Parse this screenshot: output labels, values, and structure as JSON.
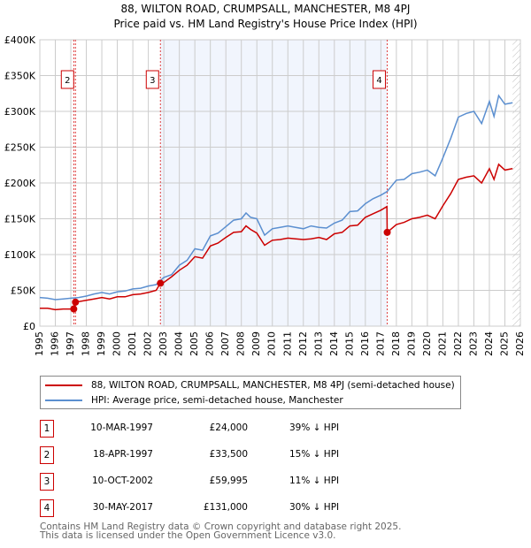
{
  "chart_data": {
    "type": "line",
    "title": "88, WILTON ROAD, CRUMPSALL, MANCHESTER, M8 4PJ",
    "subtitle": "Price paid vs. HM Land Registry's House Price Index (HPI)",
    "xlim": [
      1995,
      2026
    ],
    "ylim": [
      0,
      400000
    ],
    "y_ticks": [
      {
        "v": 0,
        "label": "£0"
      },
      {
        "v": 50000,
        "label": "£50K"
      },
      {
        "v": 100000,
        "label": "£100K"
      },
      {
        "v": 150000,
        "label": "£150K"
      },
      {
        "v": 200000,
        "label": "£200K"
      },
      {
        "v": 250000,
        "label": "£250K"
      },
      {
        "v": 300000,
        "label": "£300K"
      },
      {
        "v": 350000,
        "label": "£350K"
      },
      {
        "v": 400000,
        "label": "£400K"
      }
    ],
    "x_ticks": [
      "1995",
      "1996",
      "1997",
      "1998",
      "1999",
      "2000",
      "2001",
      "2002",
      "2003",
      "2004",
      "2005",
      "2006",
      "2007",
      "2008",
      "2009",
      "2010",
      "2011",
      "2012",
      "2013",
      "2014",
      "2015",
      "2016",
      "2017",
      "2018",
      "2019",
      "2020",
      "2021",
      "2022",
      "2023",
      "2024",
      "2025",
      "2026"
    ],
    "grid": true,
    "shaded_range": [
      2002.78,
      2017.41
    ],
    "hatched_from": 2025.5,
    "series": [
      {
        "name": "88, WILTON ROAD, CRUMPSALL, MANCHESTER, M8 4PJ (semi-detached house)",
        "color": "#cc0000",
        "x": [
          1995,
          1995.5,
          1996,
          1996.5,
          1997.19,
          1997.3,
          1998,
          1998.5,
          1999,
          1999.5,
          2000,
          2000.5,
          2001,
          2001.5,
          2002,
          2002.5,
          2002.78,
          2003,
          2003.5,
          2004,
          2004.5,
          2005,
          2005.5,
          2006,
          2006.5,
          2007,
          2007.5,
          2008,
          2008.3,
          2008.6,
          2009,
          2009.5,
          2010,
          2010.5,
          2011,
          2011.5,
          2012,
          2012.5,
          2013,
          2013.5,
          2014,
          2014.5,
          2015,
          2015.5,
          2016,
          2016.5,
          2017,
          2017.39,
          2017.41,
          2018,
          2018.5,
          2019,
          2019.5,
          2020,
          2020.5,
          2021,
          2021.5,
          2022,
          2022.5,
          2023,
          2023.5,
          2024,
          2024.3,
          2024.6,
          2025,
          2025.5
        ],
        "y": [
          25000,
          25000,
          23000,
          24000,
          24000,
          33500,
          36000,
          38000,
          40000,
          38000,
          41000,
          41000,
          44000,
          45000,
          47000,
          50000,
          59995,
          61000,
          69000,
          78000,
          85000,
          97000,
          95000,
          112000,
          116000,
          124000,
          131000,
          132000,
          140000,
          135000,
          130000,
          113000,
          120000,
          121000,
          123000,
          122000,
          121000,
          122000,
          124000,
          121000,
          129000,
          131000,
          140000,
          141000,
          152000,
          157000,
          162000,
          167000,
          131000,
          142000,
          145000,
          150000,
          152000,
          155000,
          150000,
          168000,
          185000,
          205000,
          208000,
          210000,
          200000,
          220000,
          205000,
          226000,
          218000,
          220000
        ]
      },
      {
        "name": "HPI: Average price, semi-detached house, Manchester",
        "color": "#5b8fd0",
        "x": [
          1995,
          1995.5,
          1996,
          1996.5,
          1997,
          1997.5,
          1998,
          1998.5,
          1999,
          1999.5,
          2000,
          2000.5,
          2001,
          2001.5,
          2002,
          2002.5,
          2003,
          2003.5,
          2004,
          2004.5,
          2005,
          2005.5,
          2006,
          2006.5,
          2007,
          2007.5,
          2008,
          2008.3,
          2008.6,
          2009,
          2009.5,
          2010,
          2010.5,
          2011,
          2011.5,
          2012,
          2012.5,
          2013,
          2013.5,
          2014,
          2014.5,
          2015,
          2015.5,
          2016,
          2016.5,
          2017,
          2017.4,
          2018,
          2018.5,
          2019,
          2019.5,
          2020,
          2020.5,
          2021,
          2021.5,
          2022,
          2022.5,
          2023,
          2023.5,
          2024,
          2024.3,
          2024.6,
          2025,
          2025.5
        ],
        "y": [
          40000,
          39000,
          37000,
          38000,
          39000,
          40000,
          42000,
          45000,
          47000,
          45000,
          48000,
          49000,
          52000,
          53000,
          56000,
          58000,
          68000,
          72000,
          85000,
          92000,
          108000,
          106000,
          126000,
          130000,
          139000,
          148000,
          150000,
          158000,
          152000,
          150000,
          127000,
          136000,
          138000,
          140000,
          138000,
          136000,
          140000,
          138000,
          137000,
          144000,
          148000,
          160000,
          161000,
          171000,
          178000,
          183000,
          188000,
          204000,
          205000,
          213000,
          215000,
          218000,
          210000,
          235000,
          262000,
          292000,
          297000,
          300000,
          283000,
          314000,
          293000,
          322000,
          310000,
          312000
        ]
      }
    ],
    "markers": [
      {
        "id": "1",
        "x": 1997.19,
        "y": 24000,
        "show_label": false
      },
      {
        "id": "2",
        "x": 1997.3,
        "y": 33500,
        "show_label": true
      },
      {
        "id": "3",
        "x": 2002.78,
        "y": 59995,
        "show_label": true
      },
      {
        "id": "4",
        "x": 2017.41,
        "y": 131000,
        "show_label": true
      }
    ]
  },
  "legend": {
    "items": [
      "88, WILTON ROAD, CRUMPSALL, MANCHESTER, M8 4PJ (semi-detached house)",
      "HPI: Average price, semi-detached house, Manchester"
    ]
  },
  "transactions": [
    {
      "num": "1",
      "date": "10-MAR-1997",
      "price": "£24,000",
      "hpi": "39% ↓ HPI"
    },
    {
      "num": "2",
      "date": "18-APR-1997",
      "price": "£33,500",
      "hpi": "15% ↓ HPI"
    },
    {
      "num": "3",
      "date": "10-OCT-2002",
      "price": "£59,995",
      "hpi": "11% ↓ HPI"
    },
    {
      "num": "4",
      "date": "30-MAY-2017",
      "price": "£131,000",
      "hpi": "30% ↓ HPI"
    }
  ],
  "footer": {
    "line1": "Contains HM Land Registry data © Crown copyright and database right 2025.",
    "line2": "This data is licensed under the Open Government Licence v3.0."
  }
}
